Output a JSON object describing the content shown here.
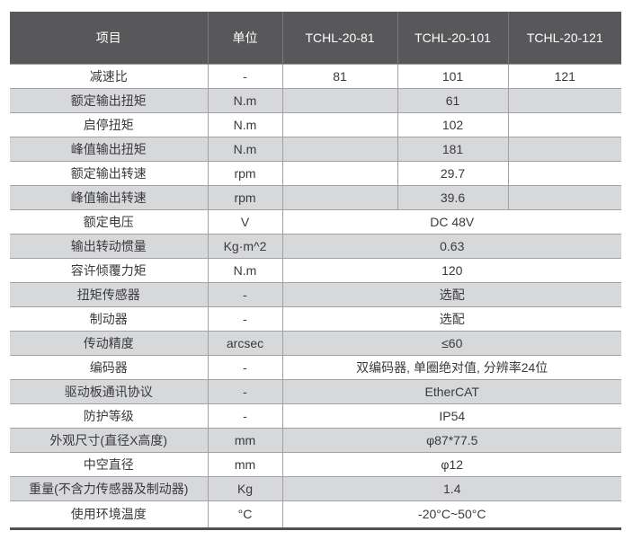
{
  "colors": {
    "header_bg": "#58585a",
    "header_text": "#ffffff",
    "header_divider": "#7b7b7d",
    "row_alt_bg": "#d7d8d9",
    "border": "#a1a1a3",
    "bottom_border": "#525254",
    "text": "#3a3a3c"
  },
  "table": {
    "headers": [
      "项目",
      "单位",
      "TCHL-20-81",
      "TCHL-20-101",
      "TCHL-20-121"
    ],
    "rows": [
      {
        "item": "减速比",
        "unit": "-",
        "cells": [
          "81",
          "101",
          "121"
        ]
      },
      {
        "item": "额定输出扭矩",
        "unit": "N.m",
        "cells": [
          "",
          "61",
          ""
        ]
      },
      {
        "item": "启停扭矩",
        "unit": "N.m",
        "cells": [
          "",
          "102",
          ""
        ]
      },
      {
        "item": "峰值输出扭矩",
        "unit": "N.m",
        "cells": [
          "",
          "181",
          ""
        ]
      },
      {
        "item": "额定输出转速",
        "unit": "rpm",
        "cells": [
          "",
          "29.7",
          ""
        ]
      },
      {
        "item": "峰值输出转速",
        "unit": "rpm",
        "cells": [
          "",
          "39.6",
          ""
        ]
      },
      {
        "item": "额定电压",
        "unit": "V",
        "cells": [
          "DC 48V"
        ]
      },
      {
        "item": "输出转动惯量",
        "unit": "Kg·m^2",
        "cells": [
          "0.63"
        ]
      },
      {
        "item": "容许倾覆力矩",
        "unit": "N.m",
        "cells": [
          "120"
        ]
      },
      {
        "item": "扭矩传感器",
        "unit": "-",
        "cells": [
          "选配"
        ]
      },
      {
        "item": "制动器",
        "unit": "-",
        "cells": [
          "选配"
        ]
      },
      {
        "item": "传动精度",
        "unit": "arcsec",
        "cells": [
          "≤60"
        ]
      },
      {
        "item": "编码器",
        "unit": "-",
        "cells": [
          "双编码器, 单圈绝对值, 分辨率24位"
        ]
      },
      {
        "item": "驱动板通讯协议",
        "unit": "-",
        "cells": [
          "EtherCAT"
        ]
      },
      {
        "item": "防护等级",
        "unit": "-",
        "cells": [
          "IP54"
        ]
      },
      {
        "item": "外观尺寸(直径X高度)",
        "unit": "mm",
        "cells": [
          "φ87*77.5"
        ]
      },
      {
        "item": "中空直径",
        "unit": "mm",
        "cells": [
          "φ12"
        ]
      },
      {
        "item": "重量(不含力传感器及制动器)",
        "unit": "Kg",
        "cells": [
          "1.4"
        ]
      },
      {
        "item": "使用环境温度",
        "unit": "°C",
        "cells": [
          "-20°C~50°C"
        ]
      }
    ]
  }
}
